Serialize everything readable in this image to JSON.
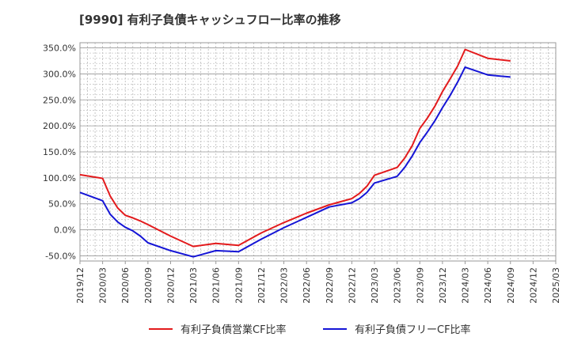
{
  "chart_data": {
    "type": "line",
    "title": "[9990]  有利子負債キャッシュフロー比率の推移",
    "xlabel": "",
    "ylabel": "",
    "ylim": [
      -60,
      360
    ],
    "y_ticks": [
      "350.0%",
      "300.0%",
      "250.0%",
      "200.0%",
      "150.0%",
      "100.0%",
      "50.0%",
      "0.0%",
      "-50.0%"
    ],
    "y_tick_values": [
      350,
      300,
      250,
      200,
      150,
      100,
      50,
      0,
      -50
    ],
    "x_ticks": [
      "2019/12",
      "2020/03",
      "2020/06",
      "2020/09",
      "2020/12",
      "2021/03",
      "2021/06",
      "2021/09",
      "2021/12",
      "2022/03",
      "2022/06",
      "2022/09",
      "2022/12",
      "2023/03",
      "2023/06",
      "2023/09",
      "2023/12",
      "2024/03",
      "2024/06",
      "2024/09",
      "2024/12",
      "2025/03"
    ],
    "grid": true,
    "legend_position": "bottom",
    "series": [
      {
        "name": "有利子負債営業CF比率",
        "color": "#e31a1c",
        "x": [
          "2019/12",
          "2020/03",
          "2020/04",
          "2020/05",
          "2020/06",
          "2020/07",
          "2020/08",
          "2020/09",
          "2020/12",
          "2021/03",
          "2021/06",
          "2021/09",
          "2021/12",
          "2022/03",
          "2022/06",
          "2022/09",
          "2022/12",
          "2023/01",
          "2023/02",
          "2023/03",
          "2023/06",
          "2023/07",
          "2023/08",
          "2023/09",
          "2023/10",
          "2023/11",
          "2023/12",
          "2024/01",
          "2024/02",
          "2024/03",
          "2024/06",
          "2024/09"
        ],
        "values": [
          106,
          99,
          65,
          42,
          28,
          23,
          17,
          10,
          -12,
          -32,
          -26,
          -30,
          -6,
          14,
          32,
          48,
          60,
          70,
          84,
          105,
          120,
          138,
          162,
          195,
          215,
          238,
          266,
          290,
          315,
          347,
          330,
          325
        ]
      },
      {
        "name": "有利子負債フリーCF比率",
        "color": "#1515d6",
        "x": [
          "2019/12",
          "2020/03",
          "2020/04",
          "2020/05",
          "2020/06",
          "2020/07",
          "2020/08",
          "2020/09",
          "2020/12",
          "2021/03",
          "2021/06",
          "2021/09",
          "2021/12",
          "2022/03",
          "2022/06",
          "2022/09",
          "2022/12",
          "2023/01",
          "2023/02",
          "2023/03",
          "2023/06",
          "2023/07",
          "2023/08",
          "2023/09",
          "2023/10",
          "2023/11",
          "2023/12",
          "2024/01",
          "2024/02",
          "2024/03",
          "2024/06",
          "2024/09"
        ],
        "values": [
          72,
          56,
          30,
          15,
          5,
          -2,
          -12,
          -25,
          -40,
          -52,
          -40,
          -42,
          -18,
          4,
          24,
          44,
          52,
          60,
          72,
          90,
          103,
          120,
          142,
          168,
          188,
          210,
          235,
          258,
          284,
          313,
          298,
          294
        ]
      }
    ]
  }
}
